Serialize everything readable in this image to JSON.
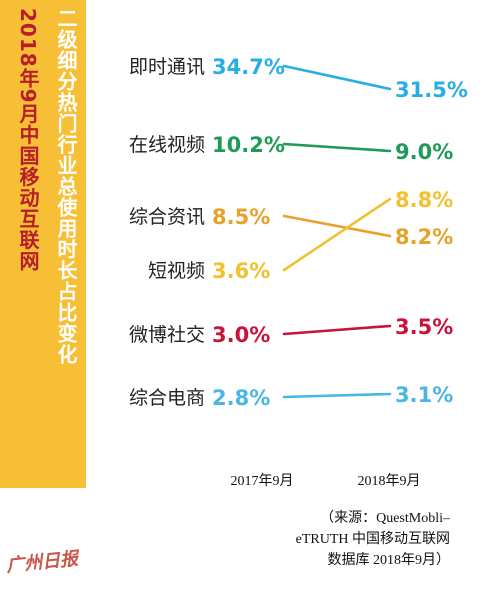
{
  "title_main": "二级细分热门行业总使用时长占比变化",
  "title_sub": "2018年9月中国移动互联网",
  "logo_text": "广州日报",
  "source": "（来源：QuestMobli–\neTRUTH 中国移动互联网\n数据库 2018年9月）",
  "chart_data": {
    "type": "slope",
    "x": [
      "2017年9月",
      "2018年9月"
    ],
    "series": [
      {
        "name": "即时通讯",
        "values": [
          34.7,
          31.5
        ],
        "labels": [
          "34.7%",
          "31.5%"
        ],
        "color": "#27aee3"
      },
      {
        "name": "在线视频",
        "values": [
          10.2,
          9.0
        ],
        "labels": [
          "10.2%",
          "9.0%"
        ],
        "color": "#1f9a57"
      },
      {
        "name": "综合资讯",
        "values": [
          8.5,
          8.2
        ],
        "labels": [
          "8.5%",
          "8.2%"
        ],
        "color": "#e8a22c"
      },
      {
        "name": "短视频",
        "values": [
          3.6,
          8.8
        ],
        "labels": [
          "3.6%",
          "8.8%"
        ],
        "color": "#f2c12e"
      },
      {
        "name": "微博社交",
        "values": [
          3.0,
          3.5
        ],
        "labels": [
          "3.0%",
          "3.5%"
        ],
        "color": "#c8143c"
      },
      {
        "name": "综合电商",
        "values": [
          2.8,
          3.1
        ],
        "labels": [
          "2.8%",
          "3.1%"
        ],
        "color": "#49b6e4"
      }
    ]
  }
}
